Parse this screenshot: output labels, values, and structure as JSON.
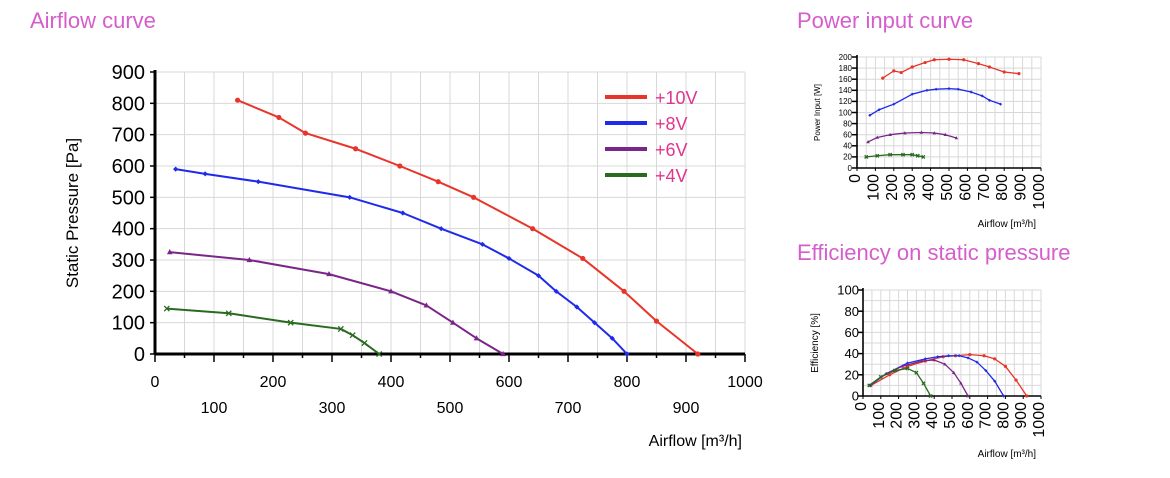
{
  "titles": {
    "airflow": "Airflow curve",
    "power": "Power input curve",
    "efficiency": "Efficiency on static pressure"
  },
  "colors": {
    "title": "#d65ecc",
    "legend_text": "#e0348f",
    "series": [
      "#e8352a",
      "#1f2bea",
      "#7a2689",
      "#2a6a20"
    ]
  },
  "chart_data": [
    {
      "type": "line",
      "title": "Airflow curve",
      "xlabel": "Airflow [m³/h]",
      "ylabel": "Static Pressure [Pa]",
      "xlim": [
        0,
        1000
      ],
      "ylim": [
        0,
        900
      ],
      "x_ticks_top": [
        "0",
        "200",
        "400",
        "600",
        "800",
        "1000"
      ],
      "x_ticks_bottom": [
        "100",
        "300",
        "500",
        "700",
        "900"
      ],
      "y_ticks": [
        "0",
        "100",
        "200",
        "300",
        "400",
        "500",
        "600",
        "700",
        "800",
        "900"
      ],
      "grid": true,
      "legend": "top-right",
      "series": [
        {
          "name": "+10V",
          "x": [
            140,
            210,
            255,
            340,
            415,
            480,
            540,
            640,
            725,
            795,
            850,
            920
          ],
          "y": [
            810,
            755,
            705,
            655,
            600,
            550,
            500,
            400,
            305,
            200,
            105,
            0
          ]
        },
        {
          "name": "+8V",
          "x": [
            35,
            85,
            175,
            330,
            420,
            485,
            555,
            600,
            650,
            680,
            715,
            745,
            775,
            800
          ],
          "y": [
            590,
            575,
            550,
            500,
            450,
            400,
            350,
            305,
            250,
            200,
            150,
            100,
            50,
            0
          ]
        },
        {
          "name": "+6V",
          "x": [
            25,
            160,
            295,
            400,
            460,
            505,
            545,
            590
          ],
          "y": [
            325,
            300,
            255,
            200,
            155,
            100,
            50,
            0
          ]
        },
        {
          "name": "+4V",
          "x": [
            20,
            125,
            230,
            315,
            335,
            355,
            380
          ],
          "y": [
            145,
            130,
            100,
            80,
            60,
            35,
            0
          ]
        }
      ]
    },
    {
      "type": "line",
      "title": "Power input curve",
      "xlabel": "Airflow [m³/h]",
      "ylabel": "Power Input [W]",
      "xlim": [
        0,
        1000
      ],
      "ylim": [
        0,
        200
      ],
      "x_ticks": [
        "0",
        "100",
        "200",
        "300",
        "400",
        "500",
        "600",
        "700",
        "800",
        "900",
        "1000"
      ],
      "y_ticks": [
        "0",
        "20",
        "40",
        "60",
        "80",
        "100",
        "120",
        "140",
        "160",
        "180",
        "200"
      ],
      "grid": true,
      "series": [
        {
          "name": "+10V",
          "x": [
            140,
            200,
            240,
            300,
            370,
            420,
            500,
            580,
            660,
            720,
            800,
            880
          ],
          "y": [
            162,
            175,
            172,
            182,
            190,
            195,
            196,
            195,
            188,
            182,
            173,
            170
          ]
        },
        {
          "name": "+8V",
          "x": [
            70,
            120,
            200,
            300,
            380,
            430,
            500,
            550,
            620,
            680,
            720,
            780
          ],
          "y": [
            95,
            105,
            115,
            133,
            140,
            142,
            143,
            142,
            137,
            130,
            122,
            115
          ]
        },
        {
          "name": "+6V",
          "x": [
            60,
            110,
            180,
            260,
            350,
            420,
            480,
            540
          ],
          "y": [
            47,
            55,
            60,
            63,
            64,
            63,
            60,
            54
          ]
        },
        {
          "name": "+4V",
          "x": [
            50,
            110,
            180,
            250,
            300,
            330,
            360
          ],
          "y": [
            20,
            22,
            24,
            24,
            24,
            22,
            20
          ]
        }
      ]
    },
    {
      "type": "line",
      "title": "Efficiency on static pressure",
      "xlabel": "Airflow [m³/h]",
      "ylabel": "Efficiency [%]",
      "xlim": [
        0,
        1000
      ],
      "ylim": [
        0,
        100
      ],
      "x_ticks": [
        "0",
        "100",
        "200",
        "300",
        "400",
        "500",
        "600",
        "700",
        "800",
        "900",
        "1000"
      ],
      "y_ticks": [
        "0",
        "20",
        "40",
        "60",
        "80",
        "100"
      ],
      "grid": true,
      "series": [
        {
          "name": "+10V",
          "x": [
            45,
            150,
            250,
            350,
            450,
            520,
            600,
            680,
            740,
            800,
            860,
            920
          ],
          "y": [
            10,
            20,
            28,
            33,
            37,
            38,
            39,
            38,
            35,
            28,
            15,
            0
          ]
        },
        {
          "name": "+8V",
          "x": [
            40,
            130,
            250,
            350,
            420,
            480,
            540,
            590,
            640,
            690,
            740,
            790
          ],
          "y": [
            10,
            21,
            31,
            35,
            37,
            38,
            38,
            36,
            32,
            24,
            14,
            0
          ]
        },
        {
          "name": "+6V",
          "x": [
            35,
            130,
            220,
            330,
            400,
            460,
            510,
            550,
            590
          ],
          "y": [
            10,
            21,
            28,
            33,
            34,
            30,
            22,
            12,
            0
          ]
        },
        {
          "name": "+4V",
          "x": [
            35,
            100,
            180,
            250,
            300,
            340,
            380
          ],
          "y": [
            10,
            18,
            24,
            26,
            22,
            12,
            0
          ]
        }
      ]
    }
  ]
}
